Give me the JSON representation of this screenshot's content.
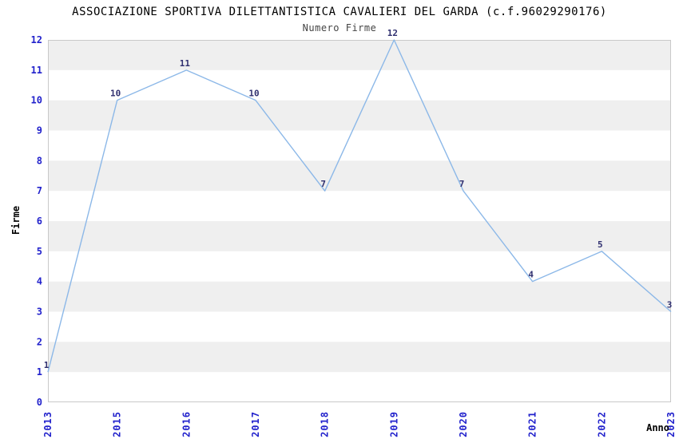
{
  "chart_data": {
    "type": "line",
    "title": "ASSOCIAZIONE SPORTIVA DILETTANTISTICA CAVALIERI DEL GARDA (c.f.96029290176)",
    "subtitle": "Numero Firme",
    "xlabel": "Anno",
    "ylabel": "Firme",
    "categories": [
      "2013",
      "2015",
      "2016",
      "2017",
      "2018",
      "2019",
      "2020",
      "2021",
      "2022",
      "2023"
    ],
    "values": [
      1,
      10,
      11,
      10,
      7,
      12,
      7,
      4,
      5,
      3
    ],
    "ylim": [
      0,
      12
    ],
    "ytick_step": 1,
    "legend": "none",
    "grid": "alternating horizontal unit bands",
    "band_intervals": [
      [
        1,
        2
      ],
      [
        3,
        4
      ],
      [
        5,
        6
      ],
      [
        7,
        8
      ],
      [
        9,
        10
      ],
      [
        11,
        12
      ]
    ],
    "markers": "none",
    "data_labels": "above points",
    "x_tick_rotation": -90,
    "colors": {
      "background": "#ffffff",
      "line": "#8cb8e8",
      "band": "#efefef",
      "plot_border": "#c9c9c9",
      "tick_label": "#2222cc",
      "data_label": "#303070",
      "title": "#000000",
      "subtitle": "#444444",
      "axis_title": "#000000"
    }
  }
}
